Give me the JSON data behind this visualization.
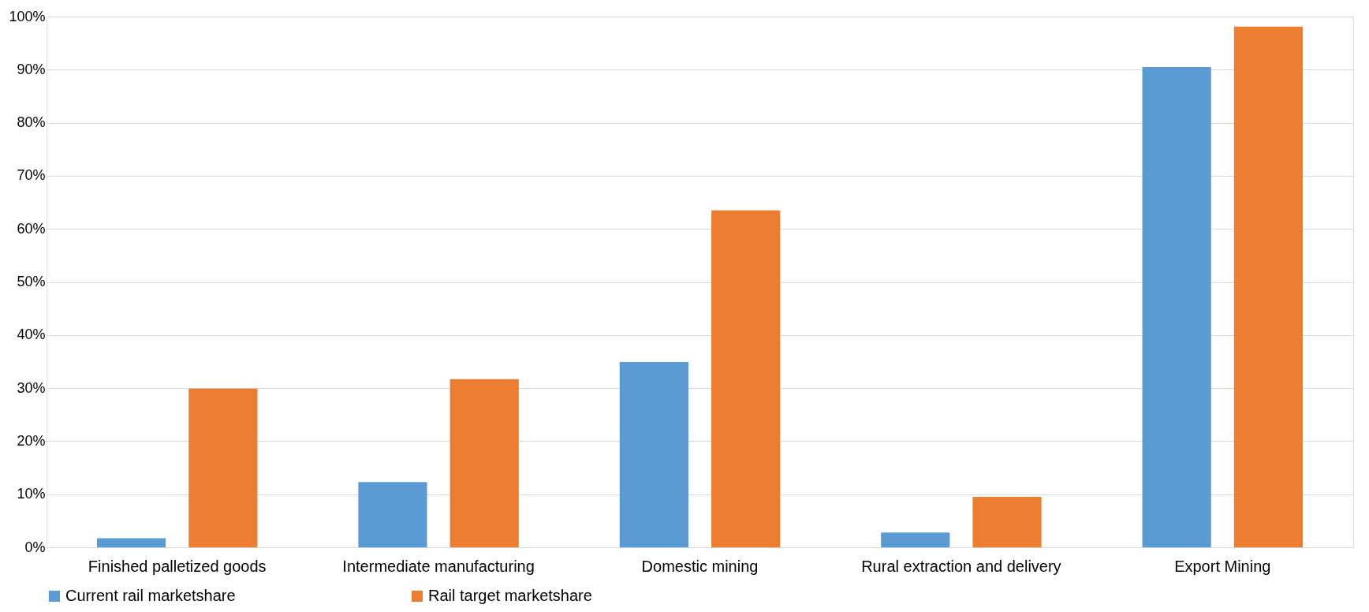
{
  "chart_data": {
    "type": "bar",
    "categories": [
      "Finished palletized goods",
      "Intermediate manufacturing",
      "Domestic mining",
      "Rural extraction and delivery",
      "Export Mining"
    ],
    "series": [
      {
        "name": "Current rail marketshare",
        "color": "#5b9bd5",
        "values": [
          1.7,
          12.3,
          34.9,
          2.8,
          90.5
        ]
      },
      {
        "name": "Rail target marketshare",
        "color": "#ed7d31",
        "values": [
          29.9,
          31.7,
          63.5,
          9.5,
          98.1
        ]
      }
    ],
    "ylim": [
      0,
      100
    ],
    "yticks": [
      {
        "value": 0,
        "label": "0%"
      },
      {
        "value": 10,
        "label": "10%"
      },
      {
        "value": 20,
        "label": "20%"
      },
      {
        "value": 30,
        "label": "30%"
      },
      {
        "value": 40,
        "label": "40%"
      },
      {
        "value": 50,
        "label": "50%"
      },
      {
        "value": 60,
        "label": "60%"
      },
      {
        "value": 70,
        "label": "70%"
      },
      {
        "value": 80,
        "label": "80%"
      },
      {
        "value": 90,
        "label": "90%"
      },
      {
        "value": 100,
        "label": "100%"
      }
    ],
    "grid": "y",
    "legend": "bottom"
  }
}
